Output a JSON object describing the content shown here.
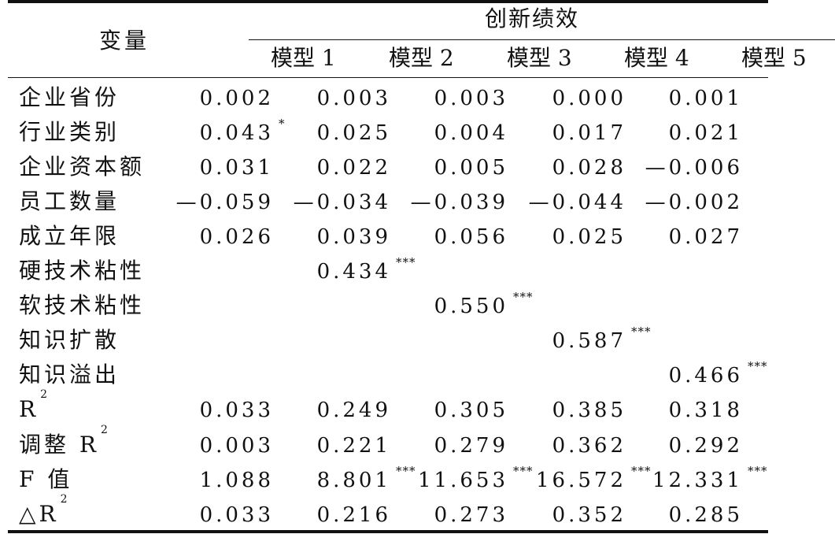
{
  "header": {
    "variable_label": "变量",
    "group_label": "创新绩效",
    "models": [
      "模型 1",
      "模型 2",
      "模型 3",
      "模型 4",
      "模型 5"
    ]
  },
  "rows": [
    {
      "label": "企业省份",
      "values": [
        {
          "v": "0.002",
          "s": ""
        },
        {
          "v": "0.003",
          "s": ""
        },
        {
          "v": "0.003",
          "s": ""
        },
        {
          "v": "0.000",
          "s": ""
        },
        {
          "v": "0.001",
          "s": ""
        }
      ]
    },
    {
      "label": "行业类别",
      "values": [
        {
          "v": "0.043",
          "s": "*"
        },
        {
          "v": "0.025",
          "s": ""
        },
        {
          "v": "0.004",
          "s": ""
        },
        {
          "v": "0.017",
          "s": ""
        },
        {
          "v": "0.021",
          "s": ""
        }
      ]
    },
    {
      "label": "企业资本额",
      "values": [
        {
          "v": "0.031",
          "s": ""
        },
        {
          "v": "0.022",
          "s": ""
        },
        {
          "v": "0.005",
          "s": ""
        },
        {
          "v": "0.028",
          "s": ""
        },
        {
          "v": "—0.006",
          "s": ""
        }
      ]
    },
    {
      "label": "员工数量",
      "values": [
        {
          "v": "—0.059",
          "s": ""
        },
        {
          "v": "—0.034",
          "s": ""
        },
        {
          "v": "—0.039",
          "s": ""
        },
        {
          "v": "—0.044",
          "s": ""
        },
        {
          "v": "—0.002",
          "s": ""
        }
      ]
    },
    {
      "label": "成立年限",
      "values": [
        {
          "v": "0.026",
          "s": ""
        },
        {
          "v": "0.039",
          "s": ""
        },
        {
          "v": "0.056",
          "s": ""
        },
        {
          "v": "0.025",
          "s": ""
        },
        {
          "v": "0.027",
          "s": ""
        }
      ]
    },
    {
      "label": "硬技术粘性",
      "values": [
        {
          "v": "",
          "s": ""
        },
        {
          "v": "0.434",
          "s": "***"
        },
        {
          "v": "",
          "s": ""
        },
        {
          "v": "",
          "s": ""
        },
        {
          "v": "",
          "s": ""
        }
      ]
    },
    {
      "label": "软技术粘性",
      "values": [
        {
          "v": "",
          "s": ""
        },
        {
          "v": "",
          "s": ""
        },
        {
          "v": "0.550",
          "s": "***"
        },
        {
          "v": "",
          "s": ""
        },
        {
          "v": "",
          "s": ""
        }
      ]
    },
    {
      "label": "知识扩散",
      "values": [
        {
          "v": "",
          "s": ""
        },
        {
          "v": "",
          "s": ""
        },
        {
          "v": "",
          "s": ""
        },
        {
          "v": "0.587",
          "s": "***"
        },
        {
          "v": "",
          "s": ""
        }
      ]
    },
    {
      "label": "知识溢出",
      "values": [
        {
          "v": "",
          "s": ""
        },
        {
          "v": "",
          "s": ""
        },
        {
          "v": "",
          "s": ""
        },
        {
          "v": "",
          "s": ""
        },
        {
          "v": "0.466",
          "s": "***"
        }
      ]
    },
    {
      "label": "R",
      "label_sup": "2",
      "values": [
        {
          "v": "0.033",
          "s": ""
        },
        {
          "v": "0.249",
          "s": ""
        },
        {
          "v": "0.305",
          "s": ""
        },
        {
          "v": "0.385",
          "s": ""
        },
        {
          "v": "0.318",
          "s": ""
        }
      ]
    },
    {
      "label": "调整 R",
      "label_sup": "2",
      "values": [
        {
          "v": "0.003",
          "s": ""
        },
        {
          "v": "0.221",
          "s": ""
        },
        {
          "v": "0.279",
          "s": ""
        },
        {
          "v": "0.362",
          "s": ""
        },
        {
          "v": "0.292",
          "s": ""
        }
      ]
    },
    {
      "label": "F 值",
      "values": [
        {
          "v": "1.088",
          "s": ""
        },
        {
          "v": "8.801",
          "s": "***"
        },
        {
          "v": "11.653",
          "s": "***"
        },
        {
          "v": "16.572",
          "s": "***"
        },
        {
          "v": "12.331",
          "s": "***"
        }
      ]
    },
    {
      "label": "△R",
      "label_sup": "2",
      "values": [
        {
          "v": "0.033",
          "s": ""
        },
        {
          "v": "0.216",
          "s": ""
        },
        {
          "v": "0.273",
          "s": ""
        },
        {
          "v": "0.352",
          "s": ""
        },
        {
          "v": "0.285",
          "s": ""
        }
      ]
    }
  ]
}
